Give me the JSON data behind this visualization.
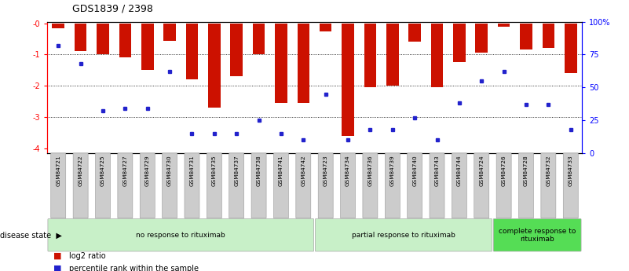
{
  "title": "GDS1839 / 2398",
  "samples": [
    "GSM84721",
    "GSM84722",
    "GSM84725",
    "GSM84727",
    "GSM84729",
    "GSM84730",
    "GSM84731",
    "GSM84735",
    "GSM84737",
    "GSM84738",
    "GSM84741",
    "GSM84742",
    "GSM84723",
    "GSM84734",
    "GSM84736",
    "GSM84739",
    "GSM84740",
    "GSM84743",
    "GSM84744",
    "GSM84724",
    "GSM84726",
    "GSM84728",
    "GSM84732",
    "GSM84733"
  ],
  "log2_values": [
    -0.15,
    -0.9,
    -1.0,
    -1.1,
    -1.5,
    -0.55,
    -1.8,
    -2.7,
    -1.7,
    -1.0,
    -2.55,
    -2.55,
    -0.25,
    -3.6,
    -2.05,
    -2.0,
    -0.6,
    -2.05,
    -1.25,
    -0.95,
    -0.1,
    -0.85,
    -0.8,
    -1.6
  ],
  "percentile_values": [
    82,
    68,
    32,
    34,
    34,
    62,
    15,
    15,
    15,
    25,
    15,
    10,
    45,
    10,
    18,
    18,
    27,
    10,
    38,
    55,
    62,
    37,
    37,
    18
  ],
  "groups": [
    {
      "label": "no response to rituximab",
      "start": 0,
      "end": 12,
      "color": "#c8f0c8"
    },
    {
      "label": "partial response to rituximab",
      "start": 12,
      "end": 20,
      "color": "#c8f0c8"
    },
    {
      "label": "complete response to\nrituximab",
      "start": 20,
      "end": 24,
      "color": "#55dd55"
    }
  ],
  "bar_color": "#cc1100",
  "dot_color": "#2222cc",
  "ylim_left": [
    -4.15,
    0.05
  ],
  "right_ticks": [
    0,
    25,
    50,
    75,
    100
  ],
  "right_tick_labels": [
    "0",
    "25",
    "50",
    "75",
    "100%"
  ],
  "grid_values": [
    -1,
    -2,
    -3
  ],
  "left_ticks": [
    0,
    -1,
    -2,
    -3,
    -4
  ],
  "left_tick_labels": [
    "-0",
    "-1",
    "-2",
    "-3",
    "-4"
  ],
  "disease_state_label": "disease state",
  "legend_items": [
    {
      "label": "log2 ratio",
      "color": "#cc1100",
      "marker": "s"
    },
    {
      "label": "percentile rank within the sample",
      "color": "#2222cc",
      "marker": "s"
    }
  ],
  "tick_label_bg": "#cccccc",
  "bar_width": 0.55
}
